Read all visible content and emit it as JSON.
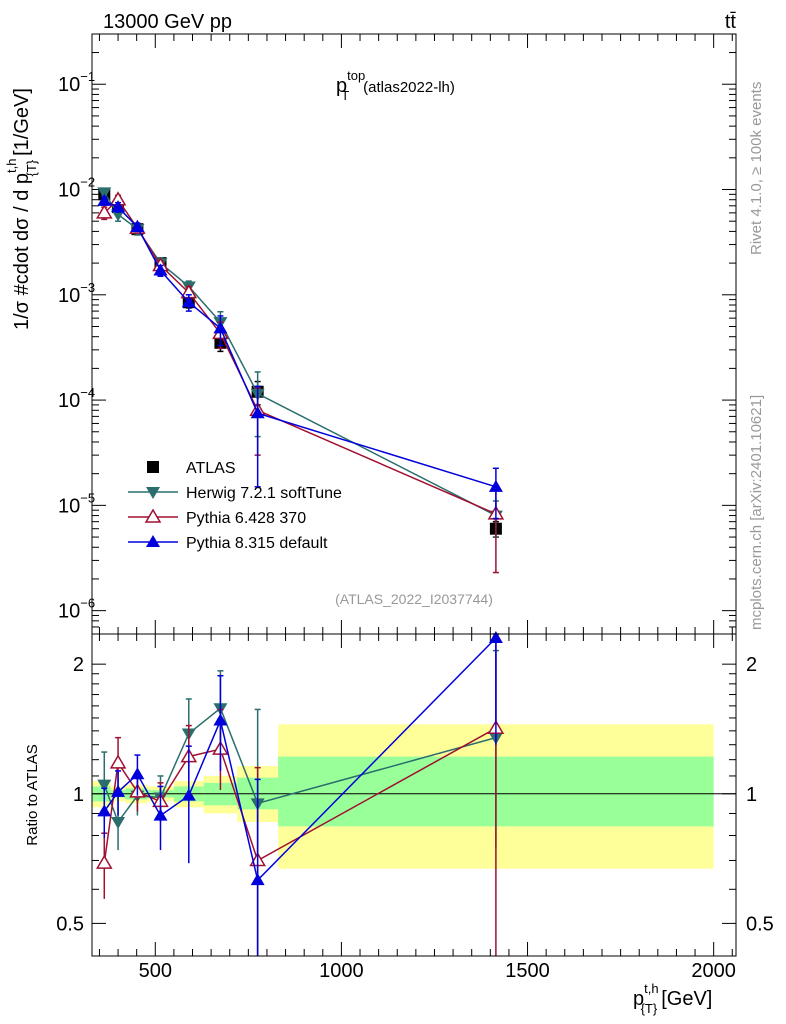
{
  "header": {
    "energy_label": "13000 GeV pp",
    "process_label": "tt̄"
  },
  "side": {
    "rivet_label": "Rivet 4.1.0, ≥ 100k events",
    "mcplots_label": "mcplots.cern.ch [arXiv:2401.10621]"
  },
  "colors": {
    "atlas": "#000000",
    "herwig": "#2a6e6e",
    "pythia6": "#a01030",
    "pythia8": "#0000dd",
    "band_inner": "#99ff99",
    "band_outer": "#ffff99"
  },
  "chart_data": [
    {
      "type": "scatter",
      "panel": "main",
      "title_main": "p",
      "title_sup": "top",
      "title_sub": "T",
      "title_suffix": "(atlas2022-lh)",
      "ylabel": "1/σ #cdot dσ / d p{T}t,h [1/GeV]",
      "ylabel_main": "1/σ #cdot dσ / d p",
      "ylabel_sup": "t,h",
      "ylabel_sub": "{T}",
      "ylabel_unit": "[1/GeV]",
      "yscale": "log",
      "ylim": [
        6e-07,
        0.3
      ],
      "xlim": [
        330,
        2060
      ],
      "yticks": [
        {
          "value": 1e-06,
          "mant": "10",
          "exp": "−6"
        },
        {
          "value": 1e-05,
          "mant": "10",
          "exp": "−5"
        },
        {
          "value": 0.0001,
          "mant": "10",
          "exp": "−4"
        },
        {
          "value": 0.001,
          "mant": "10",
          "exp": "−3"
        },
        {
          "value": 0.01,
          "mant": "10",
          "exp": "−2"
        },
        {
          "value": 0.1,
          "mant": "10",
          "exp": "−1"
        }
      ],
      "watermark": "(ATLAS_2022_I2037744)",
      "legend_position": "bottom-left",
      "series": [
        {
          "name": "ATLAS",
          "key": "atlas",
          "marker": "square",
          "x": [
            363,
            400,
            452,
            514,
            590,
            675,
            775,
            1415
          ],
          "y": [
            0.009,
            0.0068,
            0.0042,
            0.002,
            0.00085,
            0.00035,
            0.00012,
            6e-06
          ],
          "err_up": [
            0.0005,
            0.0004,
            0.0003,
            0.00015,
            0.0001,
            6e-05,
            3e-05,
            1e-06
          ],
          "err_dn": [
            0.0005,
            0.0004,
            0.0003,
            0.00015,
            0.0001,
            6e-05,
            3e-05,
            1e-06
          ]
        },
        {
          "name": "Herwig 7.2.1 softTune",
          "key": "herwig",
          "marker": "triangle-down",
          "x": [
            363,
            400,
            452,
            514,
            590,
            675,
            775,
            1415
          ],
          "y": [
            0.0094,
            0.0058,
            0.0042,
            0.002,
            0.0012,
            0.00055,
            0.000115,
            8e-06
          ],
          "err_up": [
            0.0008,
            0.0008,
            0.0005,
            0.00025,
            0.00015,
            0.00014,
            7e-05,
            3e-06
          ],
          "err_dn": [
            0.0008,
            0.0008,
            0.0005,
            0.00025,
            0.00015,
            0.00014,
            7e-05,
            3e-06
          ]
        },
        {
          "name": "Pythia 6.428 370",
          "key": "pythia6",
          "marker": "triangle-up-open",
          "x": [
            363,
            400,
            452,
            514,
            590,
            675,
            775,
            1415
          ],
          "y": [
            0.006,
            0.008,
            0.0043,
            0.0019,
            0.00105,
            0.00043,
            8e-05,
            8.3e-06
          ],
          "err_up": [
            0.0008,
            0.0008,
            0.0004,
            0.0002,
            0.00015,
            0.00012,
            5e-05,
            6e-06
          ],
          "err_dn": [
            0.0008,
            0.0008,
            0.0004,
            0.0002,
            0.00015,
            0.00012,
            5e-05,
            6e-06
          ]
        },
        {
          "name": "Pythia 8.315 default",
          "key": "pythia8",
          "marker": "triangle-up",
          "x": [
            363,
            400,
            452,
            514,
            590,
            675,
            775,
            1415
          ],
          "y": [
            0.0078,
            0.0068,
            0.0044,
            0.0017,
            0.00085,
            0.00048,
            7.5e-05,
            1.5e-05
          ],
          "err_up": [
            0.0007,
            0.0007,
            0.0004,
            0.0002,
            0.00015,
            0.00015,
            6e-05,
            7.5e-06
          ],
          "err_dn": [
            0.0007,
            0.0007,
            0.0004,
            0.0002,
            0.00015,
            0.00015,
            6e-05,
            7.5e-06
          ]
        }
      ]
    },
    {
      "type": "scatter",
      "panel": "ratio",
      "ylabel": "Ratio to ATLAS",
      "xlabel": "p{T}t,h [GeV]",
      "xlabel_main": "p",
      "xlabel_sup": "t,h",
      "xlabel_sub": "{T}",
      "xlabel_unit": "[GeV]",
      "yscale": "log",
      "ylim": [
        0.42,
        2.35
      ],
      "xlim": [
        330,
        2060
      ],
      "xticks": [
        500,
        1000,
        1500,
        2000
      ],
      "yticks": [
        0.5,
        1,
        2
      ],
      "reference_line": 1,
      "bands": {
        "edges": [
          330,
          380,
          420,
          480,
          550,
          630,
          720,
          830,
          2000
        ],
        "inner_lo": [
          0.96,
          0.98,
          0.97,
          0.98,
          0.96,
          0.94,
          0.92,
          0.84
        ],
        "inner_hi": [
          1.04,
          1.02,
          1.03,
          1.02,
          1.04,
          1.06,
          1.09,
          1.22
        ],
        "outer_lo": [
          0.93,
          0.96,
          0.95,
          0.96,
          0.93,
          0.9,
          0.86,
          0.67
        ],
        "outer_hi": [
          1.07,
          1.04,
          1.05,
          1.04,
          1.07,
          1.1,
          1.16,
          1.45
        ]
      },
      "series": [
        {
          "key": "herwig",
          "marker": "triangle-down",
          "x": [
            363,
            400,
            452,
            514,
            590,
            675,
            775,
            1415
          ],
          "y": [
            1.05,
            0.86,
            0.99,
            0.98,
            1.38,
            1.58,
            0.95,
            1.35
          ],
          "err_up": [
            0.2,
            0.15,
            0.12,
            0.12,
            0.28,
            0.35,
            0.62,
            0.8
          ],
          "err_dn": [
            0.2,
            0.12,
            0.1,
            0.1,
            0.25,
            0.3,
            0.55,
            0.6
          ]
        },
        {
          "key": "pythia6",
          "marker": "triangle-up-open",
          "x": [
            363,
            400,
            452,
            514,
            590,
            675,
            775,
            1415
          ],
          "y": [
            0.69,
            1.18,
            1.01,
            0.96,
            1.22,
            1.27,
            0.7,
            1.42
          ],
          "err_up": [
            0.12,
            0.17,
            0.1,
            0.1,
            0.22,
            0.3,
            0.45,
            0.9
          ],
          "err_dn": [
            0.12,
            0.15,
            0.1,
            0.1,
            0.2,
            0.25,
            0.4,
            1.0
          ]
        },
        {
          "key": "pythia8",
          "marker": "triangle-up",
          "x": [
            363,
            400,
            452,
            514,
            590,
            675,
            775,
            1415
          ],
          "y": [
            0.91,
            1.01,
            1.11,
            0.89,
            0.99,
            1.48,
            0.63,
            2.3
          ],
          "err_up": [
            0.12,
            0.12,
            0.12,
            0.15,
            0.3,
            0.4,
            0.45,
            1.0
          ],
          "err_dn": [
            0.12,
            0.12,
            0.12,
            0.15,
            0.3,
            0.35,
            0.4,
            1.0
          ]
        }
      ]
    }
  ]
}
